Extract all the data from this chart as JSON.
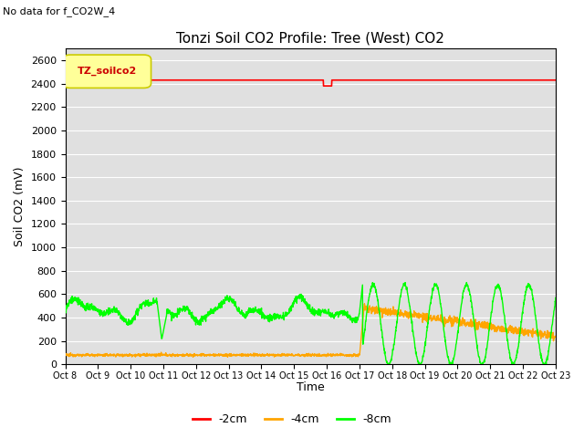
{
  "title": "Tonzi Soil CO2 Profile: Tree (West) CO2",
  "subtitle": "No data for f_CO2W_4",
  "xlabel": "Time",
  "ylabel": "Soil CO2 (mV)",
  "ylim": [
    0,
    2700
  ],
  "yticks": [
    0,
    200,
    400,
    600,
    800,
    1000,
    1200,
    1400,
    1600,
    1800,
    2000,
    2200,
    2400,
    2600
  ],
  "xtick_labels": [
    "Oct 8",
    "Oct 9",
    "Oct 10",
    "Oct 11",
    "Oct 12",
    "Oct 13",
    "Oct 14",
    "Oct 15",
    "Oct 16",
    "Oct 17",
    "Oct 18",
    "Oct 19",
    "Oct 20",
    "Oct 21",
    "Oct 22",
    "Oct 23"
  ],
  "bg_color": "#E0E0E0",
  "line_neg2cm_color": "#FF0000",
  "line_neg4cm_color": "#FFA500",
  "line_neg8cm_color": "#00FF00",
  "legend_box_facecolor": "#FFFF99",
  "legend_box_edgecolor": "#CCCC00",
  "legend_label": "TZ_soilco2",
  "legend_label_color": "#CC0000",
  "title_fontsize": 11,
  "label_fontsize": 9,
  "tick_fontsize": 8
}
